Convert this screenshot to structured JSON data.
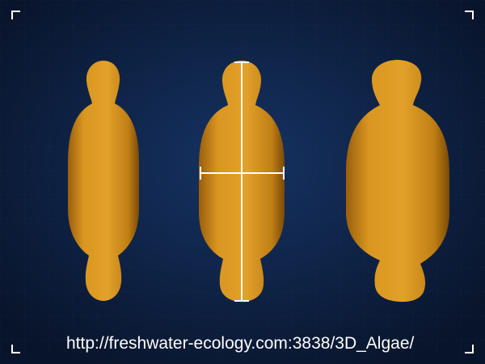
{
  "caption": {
    "url": "http://freshwater-ecology.com:3838/3D_Algae/"
  },
  "colors": {
    "background": "#0b1a33",
    "grid_line": "#1f3a66",
    "cell_body": "#d9951e",
    "cell_shadow": "#7a4a08",
    "measure_line": "#ffffff"
  }
}
